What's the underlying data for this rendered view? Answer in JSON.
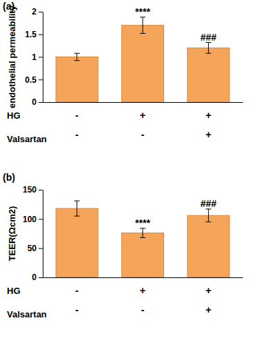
{
  "chart_data": [
    {
      "type": "bar",
      "panel": "(a)",
      "y_label": "endothelial permeability",
      "categories": [
        null,
        null,
        null
      ],
      "values": [
        1.0,
        1.7,
        1.2
      ],
      "errors": [
        0.08,
        0.18,
        0.12
      ],
      "color": "#f4a55a",
      "ylim": [
        0,
        2
      ],
      "yticks": [
        0,
        0.5,
        1,
        1.5,
        2
      ],
      "significance": [
        null,
        "****",
        "###"
      ],
      "treatments": [
        {
          "name": "HG",
          "signs": [
            "-",
            "+",
            "+"
          ]
        },
        {
          "name": "Valsartan",
          "signs": [
            "-",
            "-",
            "+"
          ]
        }
      ]
    },
    {
      "type": "bar",
      "panel": "(b)",
      "y_label": "TEER(Ωcm2)",
      "categories": [
        null,
        null,
        null
      ],
      "values": [
        118,
        76,
        106
      ],
      "errors": [
        13,
        8,
        11
      ],
      "color": "#f4a55a",
      "ylim": [
        0,
        150
      ],
      "yticks": [
        0,
        50,
        100,
        150
      ],
      "significance": [
        null,
        "****",
        "###"
      ],
      "treatments": [
        {
          "name": "HG",
          "signs": [
            "-",
            "+",
            "+"
          ]
        },
        {
          "name": "Valsartan",
          "signs": [
            "-",
            "-",
            "+"
          ]
        }
      ]
    }
  ]
}
